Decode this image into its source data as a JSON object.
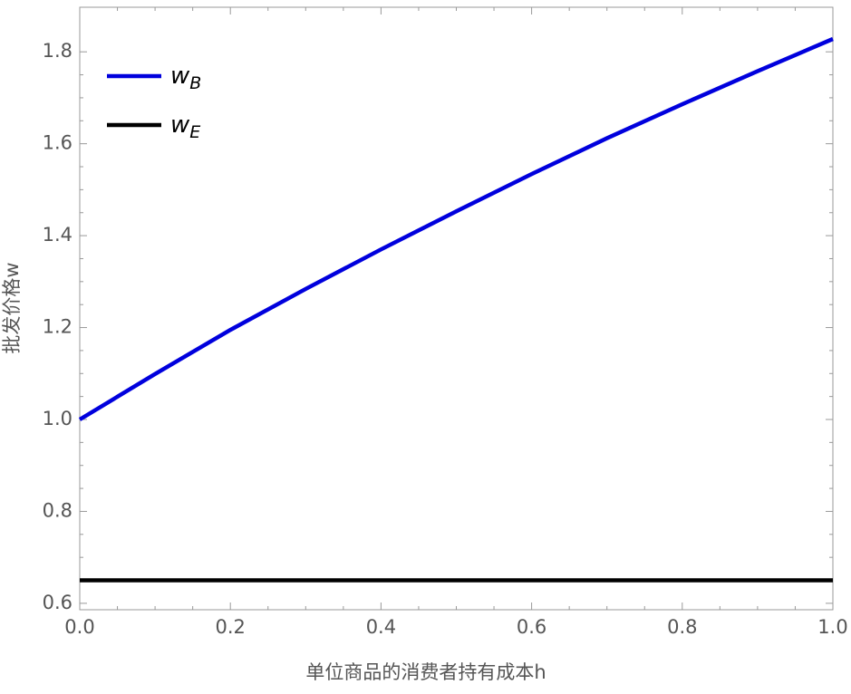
{
  "chart_data": {
    "type": "line",
    "x_label": "单位商品的消费者持有成本h",
    "y_label": "批发价格w",
    "x": [
      0.0,
      0.1,
      0.2,
      0.3,
      0.4,
      0.5,
      0.6,
      0.7,
      0.8,
      0.9,
      1.0
    ],
    "series": [
      {
        "name": "w",
        "subscript": "B",
        "color": "#0000dd",
        "values": [
          1.0,
          1.099,
          1.195,
          1.284,
          1.37,
          1.453,
          1.534,
          1.612,
          1.686,
          1.758,
          1.828
        ]
      },
      {
        "name": "w",
        "subscript": "E",
        "color": "#000000",
        "values": [
          0.65,
          0.65,
          0.65,
          0.65,
          0.65,
          0.65,
          0.65,
          0.65,
          0.65,
          0.65,
          0.65
        ]
      }
    ],
    "xlim": [
      0.0,
      1.0
    ],
    "ylim": [
      0.586,
      1.897
    ],
    "xticks": [
      {
        "value": 0,
        "label": "0.0"
      },
      0.2,
      0.4,
      0.6,
      0.8,
      {
        "value": 1,
        "label": "1.0"
      }
    ],
    "yticks": [
      0.6,
      0.8,
      {
        "value": 1,
        "label": "1.0"
      },
      1.2,
      1.4,
      1.6,
      1.8
    ],
    "legend": "top-left"
  }
}
